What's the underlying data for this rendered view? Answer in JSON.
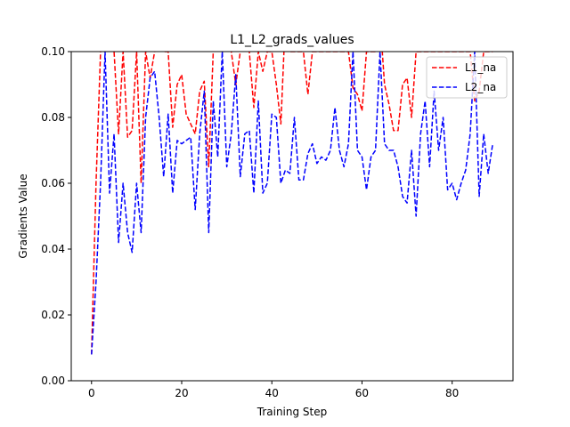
{
  "chart_data": {
    "type": "line",
    "title": "L1_L2_grads_values",
    "xlabel": "Training Step",
    "ylabel": "Gradients Value",
    "xlim": [
      -4.5,
      93.5
    ],
    "ylim": [
      0.0,
      0.1
    ],
    "xticks": [
      0,
      20,
      40,
      60,
      80
    ],
    "yticks": [
      0.0,
      0.02,
      0.04,
      0.06,
      0.08,
      0.1
    ],
    "ytick_labels": [
      "0.00",
      "0.02",
      "0.04",
      "0.06",
      "0.08",
      "0.10"
    ],
    "grid": false,
    "legend_position": "top-right",
    "series": [
      {
        "name": "L1_na",
        "color": "#ff0000",
        "linestyle": "dashed",
        "x": [
          0,
          1,
          2,
          3,
          4,
          5,
          6,
          7,
          8,
          9,
          10,
          11,
          12,
          13,
          14,
          15,
          16,
          17,
          18,
          19,
          20,
          21,
          22,
          23,
          24,
          25,
          26,
          27,
          28,
          29,
          30,
          31,
          32,
          33,
          34,
          35,
          36,
          37,
          38,
          39,
          40,
          41,
          42,
          43,
          44,
          45,
          46,
          47,
          48,
          49,
          50,
          51,
          52,
          53,
          54,
          55,
          56,
          57,
          58,
          59,
          60,
          61,
          62,
          63,
          64,
          65,
          66,
          67,
          68,
          69,
          70,
          71,
          72,
          73,
          74,
          75,
          76,
          77,
          78,
          79,
          80,
          81,
          82,
          83,
          84,
          85,
          86,
          87,
          88,
          89
        ],
        "y": [
          0.008,
          0.06,
          0.1,
          0.12,
          0.11,
          0.1,
          0.075,
          0.1,
          0.074,
          0.076,
          0.1,
          0.06,
          0.1,
          0.092,
          0.1,
          0.12,
          0.1,
          0.1,
          0.077,
          0.09,
          0.093,
          0.081,
          0.078,
          0.075,
          0.088,
          0.091,
          0.065,
          0.1,
          0.12,
          0.1,
          0.12,
          0.1,
          0.09,
          0.1,
          0.11,
          0.1,
          0.083,
          0.1,
          0.094,
          0.1,
          0.1,
          0.09,
          0.078,
          0.11,
          0.1,
          0.1,
          0.1,
          0.1,
          0.087,
          0.1,
          0.1,
          0.1,
          0.1,
          0.1,
          0.1,
          0.1,
          0.1,
          0.1,
          0.089,
          0.087,
          0.082,
          0.1,
          0.1,
          0.1,
          0.11,
          0.09,
          0.084,
          0.076,
          0.076,
          0.09,
          0.092,
          0.08,
          0.1,
          0.1,
          0.1,
          0.1,
          0.1,
          0.1,
          0.1,
          0.1,
          0.1,
          0.1,
          0.1,
          0.1,
          0.1,
          0.085,
          0.088,
          0.1,
          0.1,
          0.1
        ]
      },
      {
        "name": "L2_na",
        "color": "#0000ff",
        "linestyle": "dashed",
        "x": [
          0,
          1,
          2,
          3,
          4,
          5,
          6,
          7,
          8,
          9,
          10,
          11,
          12,
          13,
          14,
          15,
          16,
          17,
          18,
          19,
          20,
          21,
          22,
          23,
          24,
          25,
          26,
          27,
          28,
          29,
          30,
          31,
          32,
          33,
          34,
          35,
          36,
          37,
          38,
          39,
          40,
          41,
          42,
          43,
          44,
          45,
          46,
          47,
          48,
          49,
          50,
          51,
          52,
          53,
          54,
          55,
          56,
          57,
          58,
          59,
          60,
          61,
          62,
          63,
          64,
          65,
          66,
          67,
          68,
          69,
          70,
          71,
          72,
          73,
          74,
          75,
          76,
          77,
          78,
          79,
          80,
          81,
          82,
          83,
          84,
          85,
          86,
          87,
          88,
          89
        ],
        "y": [
          0.008,
          0.03,
          0.06,
          0.1,
          0.057,
          0.075,
          0.042,
          0.06,
          0.045,
          0.039,
          0.06,
          0.045,
          0.08,
          0.092,
          0.094,
          0.08,
          0.062,
          0.081,
          0.057,
          0.073,
          0.072,
          0.073,
          0.074,
          0.052,
          0.075,
          0.088,
          0.045,
          0.085,
          0.068,
          0.1,
          0.065,
          0.075,
          0.093,
          0.062,
          0.075,
          0.076,
          0.057,
          0.085,
          0.057,
          0.06,
          0.081,
          0.08,
          0.06,
          0.064,
          0.063,
          0.08,
          0.061,
          0.061,
          0.069,
          0.072,
          0.066,
          0.068,
          0.067,
          0.07,
          0.083,
          0.07,
          0.065,
          0.072,
          0.1,
          0.07,
          0.068,
          0.058,
          0.068,
          0.07,
          0.1,
          0.072,
          0.07,
          0.07,
          0.065,
          0.056,
          0.054,
          0.07,
          0.05,
          0.075,
          0.085,
          0.065,
          0.088,
          0.07,
          0.08,
          0.058,
          0.06,
          0.055,
          0.06,
          0.064,
          0.075,
          0.1,
          0.056,
          0.075,
          0.063,
          0.072
        ]
      }
    ]
  }
}
